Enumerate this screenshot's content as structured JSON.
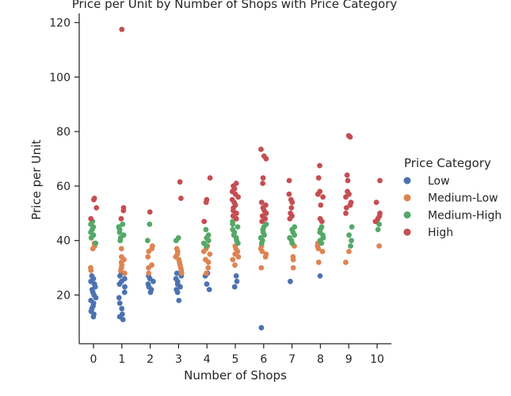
{
  "chart_data": {
    "type": "scatter",
    "title": "Price per Unit by Number of Shops with Price Category",
    "xlabel": "Number of Shops",
    "ylabel": "Price per Unit",
    "xlim": [
      -0.5,
      10.5
    ],
    "ylim": [
      3,
      123
    ],
    "xticks": [
      0,
      1,
      2,
      3,
      4,
      5,
      6,
      7,
      8,
      9,
      10
    ],
    "yticks": [
      20,
      40,
      60,
      80,
      100,
      120
    ],
    "grid": false,
    "legend": {
      "title": "Price Category",
      "placement": "right"
    },
    "series": [
      {
        "name": "Low",
        "color": "#4c72b0",
        "points": [
          [
            0,
            12
          ],
          [
            0,
            13
          ],
          [
            0,
            14
          ],
          [
            0,
            15
          ],
          [
            0,
            16
          ],
          [
            0,
            17
          ],
          [
            0,
            18
          ],
          [
            0,
            19
          ],
          [
            0,
            20
          ],
          [
            0,
            21
          ],
          [
            0,
            22
          ],
          [
            0,
            23
          ],
          [
            0,
            24
          ],
          [
            0,
            25
          ],
          [
            0,
            26
          ],
          [
            0,
            27
          ],
          [
            1,
            11
          ],
          [
            1,
            12
          ],
          [
            1,
            13
          ],
          [
            1,
            15
          ],
          [
            1,
            17
          ],
          [
            1,
            19
          ],
          [
            1,
            21
          ],
          [
            1,
            23
          ],
          [
            1,
            24
          ],
          [
            1,
            25
          ],
          [
            1,
            26
          ],
          [
            1,
            27
          ],
          [
            1,
            28
          ],
          [
            2,
            21
          ],
          [
            2,
            22
          ],
          [
            2,
            23
          ],
          [
            2,
            24
          ],
          [
            2,
            25
          ],
          [
            2,
            26
          ],
          [
            2,
            27
          ],
          [
            3,
            18
          ],
          [
            3,
            21
          ],
          [
            3,
            22
          ],
          [
            3,
            23
          ],
          [
            3,
            24
          ],
          [
            3,
            25
          ],
          [
            3,
            26
          ],
          [
            3,
            27
          ],
          [
            3,
            28
          ],
          [
            4,
            22
          ],
          [
            4,
            24
          ],
          [
            4,
            27
          ],
          [
            4,
            28
          ],
          [
            5,
            23
          ],
          [
            5,
            25
          ],
          [
            5,
            27
          ],
          [
            6,
            8
          ],
          [
            7,
            25
          ],
          [
            8,
            27
          ]
        ]
      },
      {
        "name": "Medium-Low",
        "color": "#dd8452",
        "points": [
          [
            0,
            29
          ],
          [
            0,
            30
          ],
          [
            0,
            37
          ],
          [
            0,
            38
          ],
          [
            0,
            39
          ],
          [
            1,
            28
          ],
          [
            1,
            29
          ],
          [
            1,
            30
          ],
          [
            1,
            31
          ],
          [
            1,
            32
          ],
          [
            1,
            33
          ],
          [
            1,
            34
          ],
          [
            1,
            37
          ],
          [
            2,
            28
          ],
          [
            2,
            30
          ],
          [
            2,
            31
          ],
          [
            2,
            34
          ],
          [
            2,
            36
          ],
          [
            2,
            37
          ],
          [
            2,
            38
          ],
          [
            3,
            28
          ],
          [
            3,
            29
          ],
          [
            3,
            30
          ],
          [
            3,
            31
          ],
          [
            3,
            32
          ],
          [
            3,
            33
          ],
          [
            3,
            34
          ],
          [
            3,
            35
          ],
          [
            3,
            36
          ],
          [
            3,
            37
          ],
          [
            4,
            28
          ],
          [
            4,
            30
          ],
          [
            4,
            32
          ],
          [
            4,
            33
          ],
          [
            4,
            35
          ],
          [
            4,
            36
          ],
          [
            4,
            37
          ],
          [
            4,
            38
          ],
          [
            5,
            31
          ],
          [
            5,
            33
          ],
          [
            5,
            34
          ],
          [
            5,
            35
          ],
          [
            5,
            36
          ],
          [
            5,
            37
          ],
          [
            5,
            38
          ],
          [
            6,
            30
          ],
          [
            6,
            34
          ],
          [
            6,
            35
          ],
          [
            6,
            36
          ],
          [
            6,
            37
          ],
          [
            6,
            38
          ],
          [
            7,
            30
          ],
          [
            7,
            33
          ],
          [
            7,
            34
          ],
          [
            7,
            38
          ],
          [
            8,
            32
          ],
          [
            8,
            36
          ],
          [
            8,
            37
          ],
          [
            8,
            38
          ],
          [
            8,
            39
          ],
          [
            9,
            32
          ],
          [
            9,
            36
          ],
          [
            10,
            38
          ]
        ]
      },
      {
        "name": "Medium-High",
        "color": "#55a868",
        "points": [
          [
            0,
            39
          ],
          [
            0,
            41
          ],
          [
            0,
            42
          ],
          [
            0,
            43
          ],
          [
            0,
            44
          ],
          [
            0,
            45
          ],
          [
            0,
            46
          ],
          [
            0,
            47
          ],
          [
            1,
            40
          ],
          [
            1,
            41
          ],
          [
            1,
            42
          ],
          [
            1,
            43
          ],
          [
            1,
            44
          ],
          [
            1,
            45
          ],
          [
            1,
            46
          ],
          [
            2,
            40
          ],
          [
            2,
            46
          ],
          [
            3,
            40
          ],
          [
            3,
            41
          ],
          [
            4,
            38
          ],
          [
            4,
            39
          ],
          [
            4,
            40
          ],
          [
            4,
            41
          ],
          [
            4,
            42
          ],
          [
            4,
            44
          ],
          [
            5,
            39
          ],
          [
            5,
            40
          ],
          [
            5,
            41
          ],
          [
            5,
            42
          ],
          [
            5,
            43
          ],
          [
            5,
            44
          ],
          [
            5,
            45
          ],
          [
            5,
            46
          ],
          [
            5,
            47
          ],
          [
            6,
            39
          ],
          [
            6,
            40
          ],
          [
            6,
            41
          ],
          [
            6,
            42
          ],
          [
            6,
            43
          ],
          [
            6,
            44
          ],
          [
            6,
            45
          ],
          [
            6,
            46
          ],
          [
            7,
            39
          ],
          [
            7,
            40
          ],
          [
            7,
            41
          ],
          [
            7,
            42
          ],
          [
            7,
            43
          ],
          [
            7,
            44
          ],
          [
            7,
            45
          ],
          [
            8,
            39
          ],
          [
            8,
            40
          ],
          [
            8,
            41
          ],
          [
            8,
            42
          ],
          [
            8,
            43
          ],
          [
            8,
            44
          ],
          [
            8,
            45
          ],
          [
            9,
            38
          ],
          [
            9,
            40
          ],
          [
            9,
            42
          ],
          [
            9,
            45
          ],
          [
            10,
            44
          ],
          [
            10,
            46
          ],
          [
            10,
            47
          ]
        ]
      },
      {
        "name": "High",
        "color": "#c44e52",
        "points": [
          [
            0,
            48
          ],
          [
            0,
            52
          ],
          [
            0,
            55
          ],
          [
            0,
            55.5
          ],
          [
            1,
            48
          ],
          [
            1,
            51
          ],
          [
            1,
            52
          ],
          [
            1,
            117.5
          ],
          [
            2,
            50.5
          ],
          [
            3,
            55.5
          ],
          [
            3,
            61.5
          ],
          [
            4,
            47
          ],
          [
            4,
            54
          ],
          [
            4,
            55
          ],
          [
            4,
            63
          ],
          [
            5,
            48
          ],
          [
            5,
            49
          ],
          [
            5,
            50
          ],
          [
            5,
            51
          ],
          [
            5,
            52
          ],
          [
            5,
            53
          ],
          [
            5,
            54
          ],
          [
            5,
            55
          ],
          [
            5,
            56
          ],
          [
            5,
            57
          ],
          [
            5,
            58
          ],
          [
            5,
            59
          ],
          [
            5,
            60
          ],
          [
            5,
            61
          ],
          [
            6,
            47
          ],
          [
            6,
            48
          ],
          [
            6,
            49
          ],
          [
            6,
            50
          ],
          [
            6,
            51
          ],
          [
            6,
            52
          ],
          [
            6,
            53
          ],
          [
            6,
            54
          ],
          [
            6,
            61
          ],
          [
            6,
            63
          ],
          [
            6,
            70
          ],
          [
            6,
            71
          ],
          [
            6,
            73.5
          ],
          [
            7,
            48
          ],
          [
            7,
            49
          ],
          [
            7,
            50
          ],
          [
            7,
            52
          ],
          [
            7,
            54
          ],
          [
            7,
            55
          ],
          [
            7,
            57
          ],
          [
            7,
            62
          ],
          [
            8,
            47
          ],
          [
            8,
            48
          ],
          [
            8,
            53
          ],
          [
            8,
            56
          ],
          [
            8,
            57
          ],
          [
            8,
            58
          ],
          [
            8,
            63
          ],
          [
            8,
            67.5
          ],
          [
            9,
            50
          ],
          [
            9,
            52
          ],
          [
            9,
            53
          ],
          [
            9,
            54
          ],
          [
            9,
            56
          ],
          [
            9,
            57
          ],
          [
            9,
            58
          ],
          [
            9,
            62
          ],
          [
            9,
            64
          ],
          [
            9,
            78
          ],
          [
            9,
            78.5
          ],
          [
            10,
            47
          ],
          [
            10,
            48
          ],
          [
            10,
            49
          ],
          [
            10,
            50
          ],
          [
            10,
            54
          ],
          [
            10,
            62
          ]
        ]
      }
    ]
  }
}
